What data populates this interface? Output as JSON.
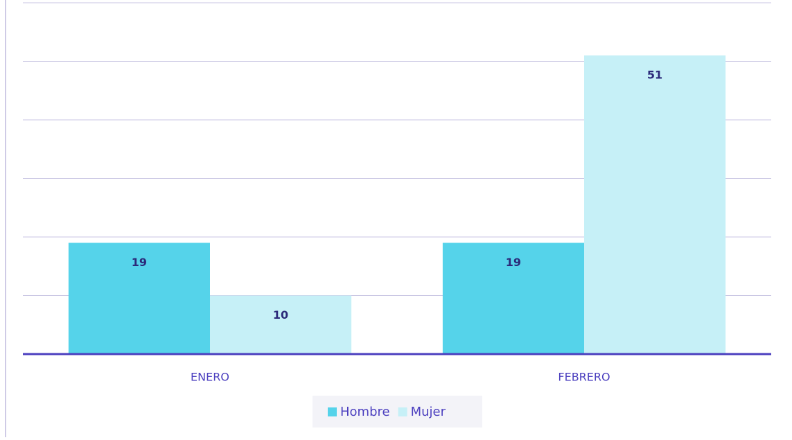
{
  "chart_data": {
    "type": "bar",
    "categories": [
      "ENERO",
      "FEBRERO"
    ],
    "series": [
      {
        "name": "Hombre",
        "color": "#55d3ea",
        "values": [
          19,
          19
        ]
      },
      {
        "name": "Mujer",
        "color": "#c6f0f7",
        "values": [
          10,
          51
        ]
      }
    ],
    "ylim": [
      0,
      60
    ],
    "yticks": [
      0,
      10,
      20,
      30,
      40,
      50,
      60
    ],
    "grid": true,
    "legend": "bottom"
  }
}
